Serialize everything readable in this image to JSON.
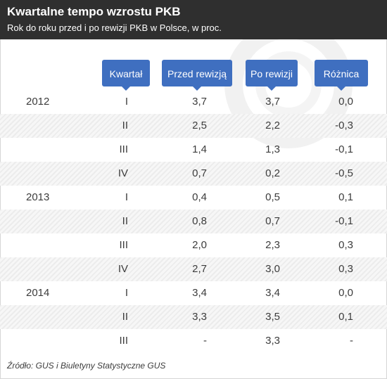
{
  "title": "Kwartalne tempo wzrostu PKB",
  "subtitle": "Rok do roku przed i po rewizji  PKB w Polsce, w proc.",
  "source": "Źródło: GUS i Biuletyny Statystyczne GUS",
  "colors": {
    "header_bg": "#2f2f2f",
    "accent": "#3f6fc0",
    "stripe": "#ececec"
  },
  "chart_data": {
    "type": "table",
    "columns": [
      "Kwartał",
      "Przed rewizją",
      "Po rewizji",
      "Różnica"
    ],
    "rows": [
      {
        "year": "2012",
        "quarter": "I",
        "before": "3,7",
        "after": "3,7",
        "diff": "0,0"
      },
      {
        "year": "",
        "quarter": "II",
        "before": "2,5",
        "after": "2,2",
        "diff": "-0,3"
      },
      {
        "year": "",
        "quarter": "III",
        "before": "1,4",
        "after": "1,3",
        "diff": "-0,1"
      },
      {
        "year": "",
        "quarter": "IV",
        "before": "0,7",
        "after": "0,2",
        "diff": "-0,5"
      },
      {
        "year": "2013",
        "quarter": "I",
        "before": "0,4",
        "after": "0,5",
        "diff": "0,1"
      },
      {
        "year": "",
        "quarter": "II",
        "before": "0,8",
        "after": "0,7",
        "diff": "-0,1"
      },
      {
        "year": "",
        "quarter": "III",
        "before": "2,0",
        "after": "2,3",
        "diff": "0,3"
      },
      {
        "year": "",
        "quarter": "IV",
        "before": "2,7",
        "after": "3,0",
        "diff": "0,3"
      },
      {
        "year": "2014",
        "quarter": "I",
        "before": "3,4",
        "after": "3,4",
        "diff": "0,0"
      },
      {
        "year": "",
        "quarter": "II",
        "before": "3,3",
        "after": "3,5",
        "diff": "0,1"
      },
      {
        "year": "",
        "quarter": "III",
        "before": "-",
        "after": "3,3",
        "diff": "-"
      }
    ]
  }
}
